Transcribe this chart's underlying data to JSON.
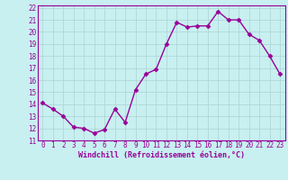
{
  "x": [
    0,
    1,
    2,
    3,
    4,
    5,
    6,
    7,
    8,
    9,
    10,
    11,
    12,
    13,
    14,
    15,
    16,
    17,
    18,
    19,
    20,
    21,
    22,
    23
  ],
  "y": [
    14.1,
    13.6,
    13.0,
    12.1,
    12.0,
    11.6,
    11.9,
    13.6,
    12.5,
    15.2,
    16.5,
    16.9,
    19.0,
    20.8,
    20.4,
    20.5,
    20.5,
    21.7,
    21.0,
    21.0,
    19.8,
    19.3,
    18.0,
    16.5
  ],
  "color": "#990099",
  "bg_color": "#c8f0f0",
  "grid_color": "#b0d8d8",
  "xlabel": "Windchill (Refroidissement éolien,°C)",
  "ylim": [
    11,
    22
  ],
  "xlim": [
    -0.5,
    23.5
  ],
  "yticks": [
    11,
    12,
    13,
    14,
    15,
    16,
    17,
    18,
    19,
    20,
    21,
    22
  ],
  "xticks": [
    0,
    1,
    2,
    3,
    4,
    5,
    6,
    7,
    8,
    9,
    10,
    11,
    12,
    13,
    14,
    15,
    16,
    17,
    18,
    19,
    20,
    21,
    22,
    23
  ],
  "tick_fontsize": 5.5,
  "xlabel_fontsize": 6.0,
  "marker_size": 2.5,
  "line_width": 1.0
}
